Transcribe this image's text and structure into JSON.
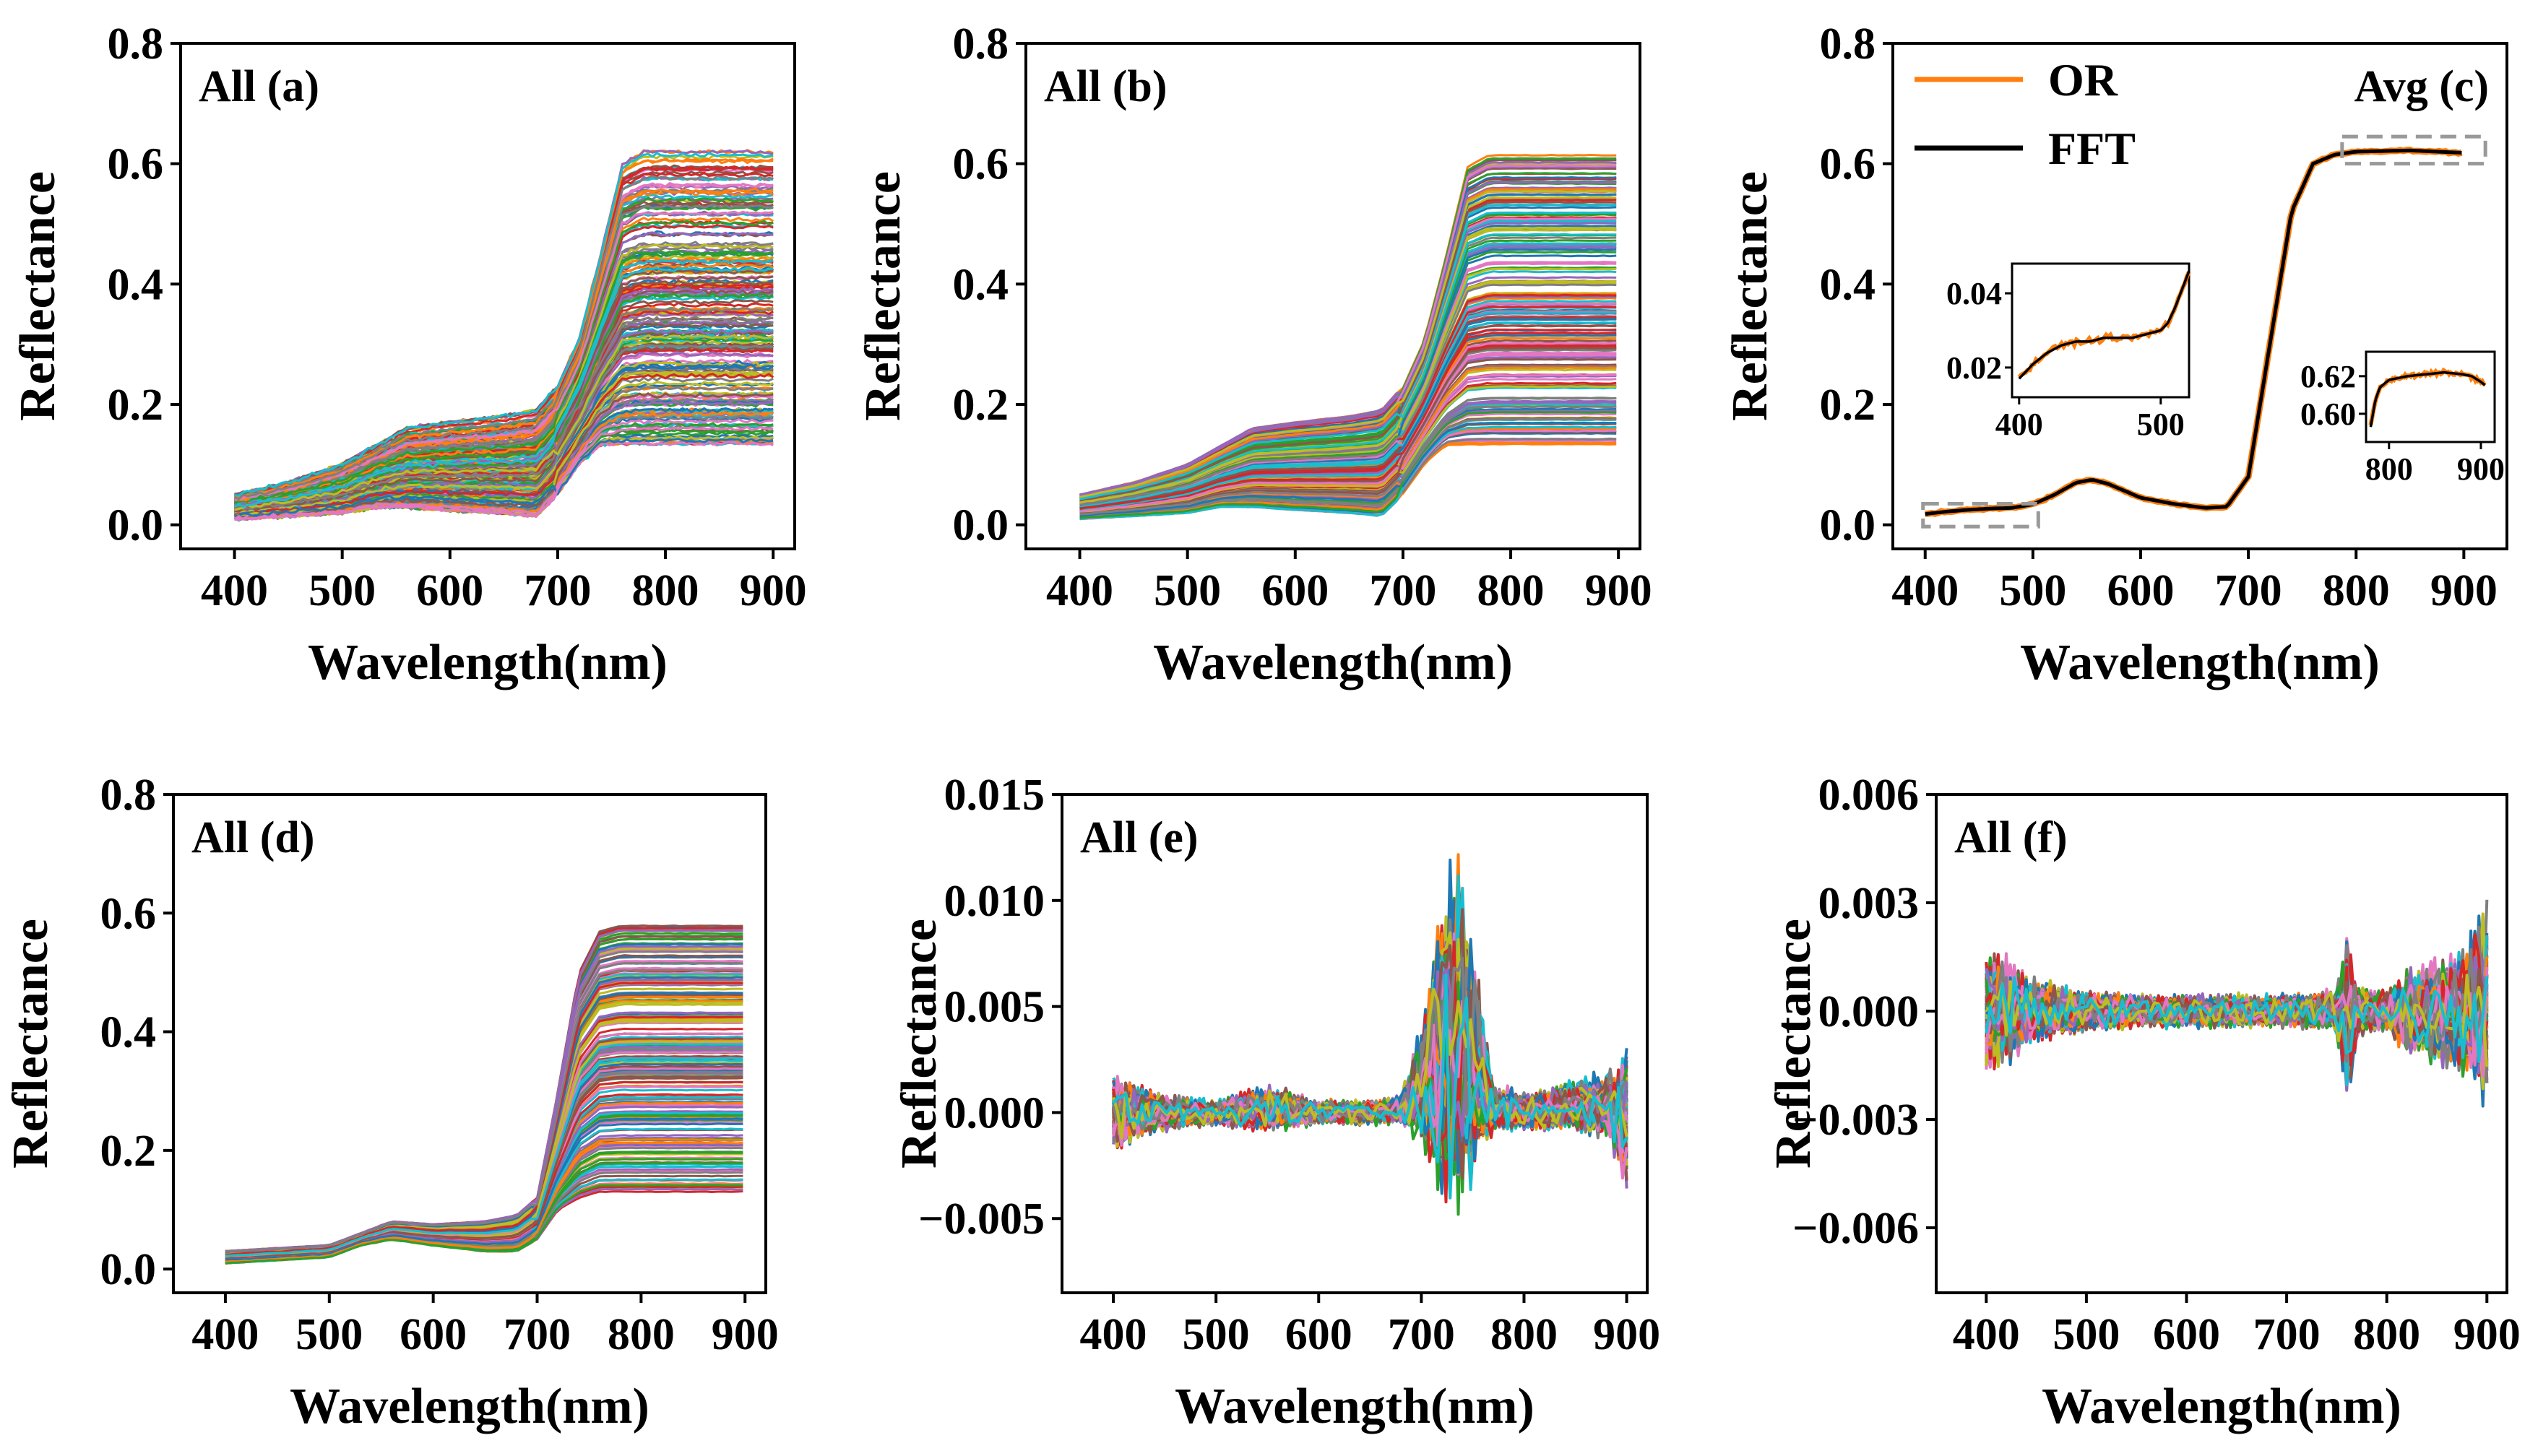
{
  "colors": {
    "palette": [
      "#1f77b4",
      "#ff7f0e",
      "#2ca02c",
      "#d62728",
      "#9467bd",
      "#8c564b",
      "#e377c2",
      "#7f7f7f",
      "#bcbd22",
      "#17becf"
    ],
    "avg_or": "#ff7f0e",
    "avg_fft": "#000000",
    "zoom_box": "#999999"
  },
  "chart_data": [
    {
      "id": "a",
      "type": "line",
      "title": "All (a)",
      "xlabel": "Wavelength(nm)",
      "ylabel": "Reflectance",
      "xlim": [
        350,
        920
      ],
      "ylim": [
        -0.04,
        0.8
      ],
      "xticks": [
        "400",
        "500",
        "600",
        "700",
        "800",
        "900"
      ],
      "yticks": [
        "0.0",
        "0.2",
        "0.4",
        "0.6",
        "0.8"
      ],
      "series_count": 200,
      "style": "raw",
      "x": [
        400,
        450,
        500,
        530,
        560,
        600,
        650,
        680,
        700,
        720,
        740,
        760,
        780,
        800,
        850,
        900
      ],
      "y_low": [
        0.01,
        0.015,
        0.02,
        0.03,
        0.03,
        0.025,
        0.02,
        0.015,
        0.05,
        0.1,
        0.13,
        0.13,
        0.13,
        0.13,
        0.13,
        0.13
      ],
      "y_high": [
        0.05,
        0.07,
        0.1,
        0.13,
        0.16,
        0.17,
        0.18,
        0.19,
        0.23,
        0.31,
        0.45,
        0.6,
        0.62,
        0.62,
        0.62,
        0.62
      ]
    },
    {
      "id": "b",
      "type": "line",
      "title": "All (b)",
      "xlabel": "Wavelength(nm)",
      "ylabel": "Reflectance",
      "xlim": [
        350,
        920
      ],
      "ylim": [
        -0.04,
        0.8
      ],
      "xticks": [
        "400",
        "500",
        "600",
        "700",
        "800",
        "900"
      ],
      "yticks": [
        "0.0",
        "0.2",
        "0.4",
        "0.6",
        "0.8"
      ],
      "series_count": 200,
      "style": "smooth",
      "x": [
        400,
        450,
        500,
        530,
        560,
        600,
        650,
        680,
        700,
        720,
        740,
        760,
        780,
        800,
        850,
        900
      ],
      "y_low": [
        0.01,
        0.015,
        0.02,
        0.03,
        0.03,
        0.025,
        0.02,
        0.015,
        0.05,
        0.1,
        0.13,
        0.13,
        0.13,
        0.13,
        0.13,
        0.13
      ],
      "y_high": [
        0.05,
        0.07,
        0.1,
        0.13,
        0.16,
        0.17,
        0.18,
        0.19,
        0.23,
        0.31,
        0.45,
        0.6,
        0.62,
        0.62,
        0.62,
        0.62
      ]
    },
    {
      "id": "c",
      "type": "line",
      "title": "Avg (c)",
      "xlabel": "Wavelength(nm)",
      "ylabel": "Reflectance",
      "xlim": [
        370,
        940
      ],
      "ylim": [
        -0.04,
        0.8
      ],
      "xticks": [
        "400",
        "500",
        "600",
        "700",
        "800",
        "900"
      ],
      "yticks": [
        "0.0",
        "0.2",
        "0.4",
        "0.6",
        "0.8"
      ],
      "legend": [
        "OR",
        "FFT"
      ],
      "legend_position": "top-left",
      "series": [
        {
          "name": "OR",
          "x": [
            400,
            420,
            440,
            460,
            480,
            500,
            520,
            540,
            555,
            570,
            600,
            630,
            660,
            680,
            700,
            720,
            740,
            760,
            780,
            800,
            850,
            900
          ],
          "y": [
            0.018,
            0.022,
            0.025,
            0.027,
            0.028,
            0.034,
            0.05,
            0.07,
            0.075,
            0.068,
            0.045,
            0.035,
            0.028,
            0.03,
            0.08,
            0.3,
            0.52,
            0.6,
            0.615,
            0.62,
            0.622,
            0.618
          ]
        },
        {
          "name": "FFT",
          "x": [
            400,
            420,
            440,
            460,
            480,
            500,
            520,
            540,
            555,
            570,
            600,
            630,
            660,
            680,
            700,
            720,
            740,
            760,
            780,
            800,
            850,
            900
          ],
          "y": [
            0.018,
            0.022,
            0.025,
            0.027,
            0.028,
            0.034,
            0.05,
            0.07,
            0.075,
            0.068,
            0.045,
            0.035,
            0.028,
            0.03,
            0.08,
            0.3,
            0.52,
            0.6,
            0.615,
            0.62,
            0.622,
            0.618
          ]
        }
      ],
      "insets": [
        {
          "name": "inset-left",
          "xlim": [
            395,
            520
          ],
          "ylim": [
            0.012,
            0.048
          ],
          "xticks": [
            "400",
            "500"
          ],
          "yticks": [
            "0.02",
            "0.04"
          ],
          "x": [
            400,
            410,
            420,
            430,
            440,
            450,
            460,
            470,
            480,
            490,
            500,
            505,
            510,
            515,
            520
          ],
          "y": [
            0.017,
            0.021,
            0.024,
            0.026,
            0.027,
            0.027,
            0.028,
            0.028,
            0.028,
            0.029,
            0.03,
            0.032,
            0.036,
            0.041,
            0.046
          ]
        },
        {
          "name": "inset-right",
          "xlim": [
            775,
            915
          ],
          "ylim": [
            0.585,
            0.633
          ],
          "xticks": [
            "800",
            "900"
          ],
          "yticks": [
            "0.60",
            "0.62"
          ],
          "x": [
            780,
            785,
            790,
            800,
            820,
            840,
            860,
            880,
            890,
            900,
            905
          ],
          "y": [
            0.593,
            0.607,
            0.614,
            0.618,
            0.62,
            0.621,
            0.622,
            0.621,
            0.62,
            0.617,
            0.615
          ]
        }
      ]
    },
    {
      "id": "d",
      "type": "line",
      "title": "All (d)",
      "xlabel": "Wavelength(nm)",
      "ylabel": "Reflectance",
      "xlim": [
        350,
        920
      ],
      "ylim": [
        -0.04,
        0.8
      ],
      "xticks": [
        "400",
        "500",
        "600",
        "700",
        "800",
        "900"
      ],
      "yticks": [
        "0.0",
        "0.2",
        "0.4",
        "0.6",
        "0.8"
      ],
      "series_count": 200,
      "style": "smooth",
      "x": [
        400,
        450,
        500,
        530,
        560,
        600,
        650,
        680,
        700,
        720,
        740,
        760,
        780,
        800,
        850,
        900
      ],
      "y_low": [
        0.01,
        0.015,
        0.02,
        0.04,
        0.05,
        0.04,
        0.03,
        0.03,
        0.05,
        0.1,
        0.12,
        0.13,
        0.13,
        0.13,
        0.13,
        0.13
      ],
      "y_high": [
        0.03,
        0.035,
        0.04,
        0.06,
        0.08,
        0.075,
        0.08,
        0.09,
        0.12,
        0.3,
        0.5,
        0.57,
        0.58,
        0.58,
        0.58,
        0.58
      ]
    },
    {
      "id": "e",
      "type": "line",
      "title": "All (e)",
      "xlabel": "Wavelength(nm)",
      "ylabel": "Reflectance",
      "xlim": [
        350,
        920
      ],
      "ylim": [
        -0.0085,
        0.015
      ],
      "xticks": [
        "400",
        "500",
        "600",
        "700",
        "800",
        "900"
      ],
      "yticks": [
        "0.015",
        "0.010",
        "0.005",
        "0.000",
        "−0.005"
      ],
      "series_count": 150,
      "style": "noise",
      "x": [
        400,
        450,
        500,
        550,
        600,
        650,
        680,
        700,
        720,
        735,
        750,
        770,
        800,
        850,
        880,
        900
      ],
      "y_low": [
        -0.003,
        -0.0015,
        -0.001,
        -0.0015,
        -0.001,
        -0.001,
        -0.0008,
        -0.0003,
        -0.0005,
        -0.0008,
        -0.0008,
        -0.0012,
        -0.0015,
        -0.001,
        -0.0015,
        -0.006
      ],
      "y_high": [
        0.003,
        0.0015,
        0.001,
        0.002,
        0.001,
        0.001,
        0.0012,
        0.004,
        0.01,
        0.0125,
        0.008,
        0.002,
        0.0015,
        0.002,
        0.0025,
        0.005
      ]
    },
    {
      "id": "f",
      "type": "line",
      "title": "All (f)",
      "xlabel": "Wavelength(nm)",
      "ylabel": "Reflectance",
      "xlim": [
        350,
        920
      ],
      "ylim": [
        -0.0078,
        0.006
      ],
      "xticks": [
        "400",
        "500",
        "600",
        "700",
        "800",
        "900"
      ],
      "yticks": [
        "0.006",
        "0.003",
        "0.000",
        "−0.003",
        "−0.006"
      ],
      "series_count": 150,
      "style": "noise",
      "x": [
        400,
        420,
        450,
        500,
        550,
        600,
        650,
        700,
        750,
        760,
        770,
        800,
        820,
        850,
        880,
        900
      ],
      "y_low": [
        -0.003,
        -0.0025,
        -0.0015,
        -0.001,
        -0.0008,
        -0.0008,
        -0.0008,
        -0.0008,
        -0.001,
        -0.004,
        -0.0012,
        -0.001,
        -0.002,
        -0.0025,
        -0.003,
        -0.004
      ],
      "y_high": [
        0.003,
        0.0025,
        0.0015,
        0.001,
        0.0008,
        0.0008,
        0.0008,
        0.0008,
        0.001,
        0.003,
        0.0012,
        0.001,
        0.002,
        0.0025,
        0.003,
        0.005
      ]
    }
  ]
}
